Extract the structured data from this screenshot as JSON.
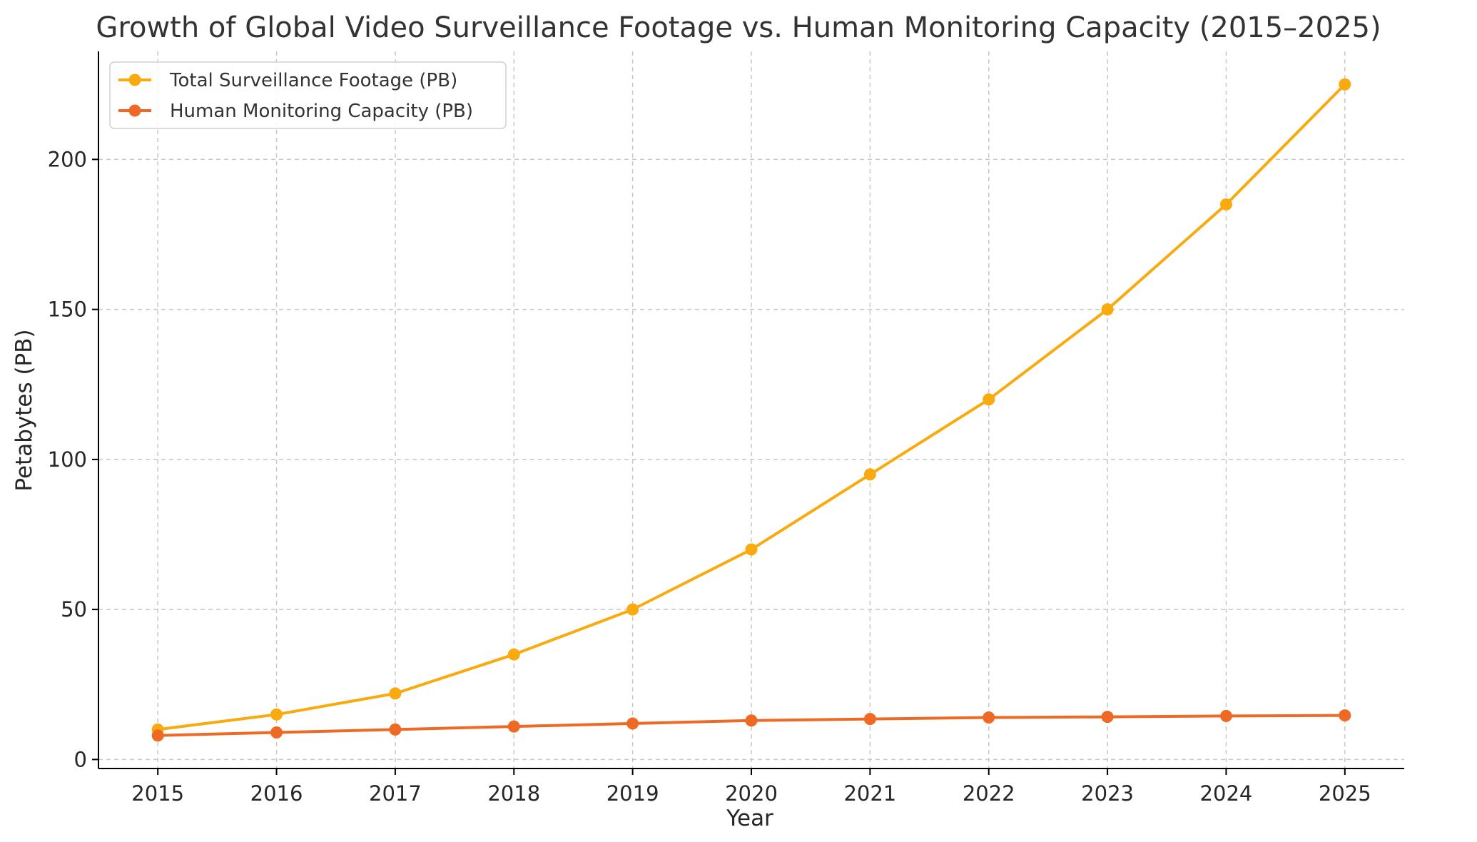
{
  "chart_data": {
    "type": "line",
    "title": "Growth of Global Video Surveillance Footage vs. Human Monitoring Capacity (2015–2025)",
    "xlabel": "Year",
    "ylabel": "Petabytes (PB)",
    "x": [
      2015,
      2016,
      2017,
      2018,
      2019,
      2020,
      2021,
      2022,
      2023,
      2024,
      2025
    ],
    "xticks": [
      "2015",
      "2016",
      "2017",
      "2018",
      "2019",
      "2020",
      "2021",
      "2022",
      "2023",
      "2024",
      "2025"
    ],
    "yticks": [
      0,
      50,
      100,
      150,
      200
    ],
    "ylim": [
      -3,
      236
    ],
    "xlim": [
      2014.5,
      2025.5
    ],
    "grid": true,
    "legend_position": "top-left",
    "series": [
      {
        "name": "Total Surveillance Footage (PB)",
        "color": "#F9AA0F",
        "values": [
          10,
          15,
          22,
          35,
          50,
          70,
          95,
          120,
          150,
          185,
          225
        ]
      },
      {
        "name": "Human Monitoring Capacity (PB)",
        "color": "#EE6A24",
        "values": [
          8,
          9,
          10,
          11,
          12,
          13,
          13.5,
          14,
          14.2,
          14.5,
          14.7
        ]
      }
    ]
  }
}
